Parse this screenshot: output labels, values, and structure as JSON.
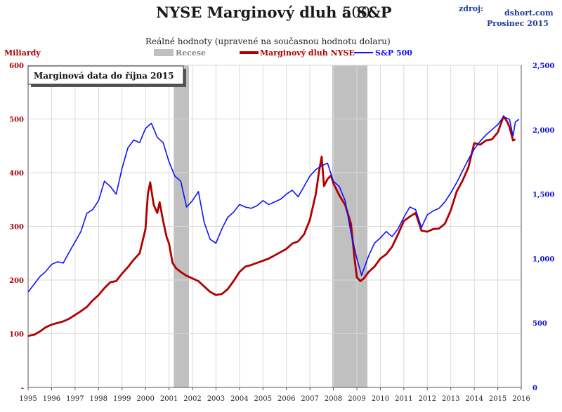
{
  "title_main": "NYSE Marginový dluh a S&P",
  "title_number": "500",
  "subtitle": "Reálné hodnoty (upravené na současnou hodnotu dolaru)",
  "source_label": "zdroj:",
  "source_site": "dshort.com",
  "source_date": "Prosinec 2015",
  "annotation": "Marginová data do října 2015",
  "ylabel_left": "Miliardy",
  "colors": {
    "margin_debt": "#b00000",
    "sp500": "#1010ff",
    "recession": "#c0c0c0",
    "grid": "#d9d9d9"
  },
  "chart_data": {
    "type": "line",
    "xlim": [
      1995,
      2016
    ],
    "x_ticks": [
      1995,
      1996,
      1997,
      1998,
      1999,
      2000,
      2001,
      2002,
      2003,
      2004,
      2005,
      2006,
      2007,
      2008,
      2009,
      2010,
      2011,
      2012,
      2013,
      2014,
      2015,
      2016
    ],
    "x_tick_labels": [
      "1995",
      "1996",
      "1997",
      "1998",
      "1999",
      "2000",
      "2001",
      "2002",
      "2003",
      "2004",
      "2005",
      "2006",
      "2007",
      "2008",
      "2009",
      "2010",
      "2011",
      "2012",
      "2013",
      "2014",
      "2015",
      "2016"
    ],
    "y_left": {
      "label": "Miliardy",
      "lim": [
        0,
        600
      ],
      "ticks": [
        0,
        100,
        200,
        300,
        400,
        500,
        600
      ],
      "tick_labels": [
        "-",
        "100",
        "200",
        "300",
        "400",
        "500",
        "600"
      ]
    },
    "y_right": {
      "lim": [
        0,
        2500
      ],
      "ticks": [
        0,
        500,
        1000,
        1500,
        2000,
        2500
      ],
      "tick_labels": [
        "0",
        "500",
        "1,000",
        "1,500",
        "2,000",
        "2,500"
      ]
    },
    "grid": true,
    "legend_placement": "top-center",
    "recessions": [
      {
        "label": "Recese",
        "start": 2001.2,
        "end": 2001.85
      },
      {
        "label": "Recese",
        "start": 2007.95,
        "end": 2009.45
      }
    ],
    "series": [
      {
        "name": "Recese",
        "kind": "band"
      },
      {
        "name": "Marginový dluh NYSE",
        "axis": "left",
        "points": [
          [
            1995.0,
            96
          ],
          [
            1995.25,
            98
          ],
          [
            1995.5,
            104
          ],
          [
            1995.75,
            112
          ],
          [
            1996.0,
            117
          ],
          [
            1996.25,
            120
          ],
          [
            1996.5,
            123
          ],
          [
            1996.75,
            128
          ],
          [
            1997.0,
            135
          ],
          [
            1997.25,
            142
          ],
          [
            1997.5,
            150
          ],
          [
            1997.75,
            162
          ],
          [
            1998.0,
            172
          ],
          [
            1998.25,
            185
          ],
          [
            1998.5,
            196
          ],
          [
            1998.75,
            198
          ],
          [
            1999.0,
            212
          ],
          [
            1999.25,
            224
          ],
          [
            1999.5,
            238
          ],
          [
            1999.75,
            250
          ],
          [
            2000.0,
            295
          ],
          [
            2000.1,
            360
          ],
          [
            2000.2,
            382
          ],
          [
            2000.35,
            340
          ],
          [
            2000.5,
            325
          ],
          [
            2000.6,
            345
          ],
          [
            2000.75,
            310
          ],
          [
            2000.9,
            280
          ],
          [
            2001.0,
            268
          ],
          [
            2001.15,
            232
          ],
          [
            2001.3,
            222
          ],
          [
            2001.5,
            215
          ],
          [
            2001.75,
            208
          ],
          [
            2002.0,
            203
          ],
          [
            2002.25,
            198
          ],
          [
            2002.5,
            188
          ],
          [
            2002.75,
            178
          ],
          [
            2003.0,
            172
          ],
          [
            2003.25,
            174
          ],
          [
            2003.5,
            183
          ],
          [
            2003.75,
            198
          ],
          [
            2004.0,
            215
          ],
          [
            2004.25,
            225
          ],
          [
            2004.5,
            228
          ],
          [
            2004.75,
            232
          ],
          [
            2005.0,
            236
          ],
          [
            2005.25,
            240
          ],
          [
            2005.5,
            246
          ],
          [
            2005.75,
            252
          ],
          [
            2006.0,
            258
          ],
          [
            2006.25,
            268
          ],
          [
            2006.5,
            272
          ],
          [
            2006.75,
            285
          ],
          [
            2007.0,
            312
          ],
          [
            2007.25,
            360
          ],
          [
            2007.4,
            405
          ],
          [
            2007.5,
            430
          ],
          [
            2007.6,
            375
          ],
          [
            2007.75,
            388
          ],
          [
            2007.9,
            395
          ],
          [
            2008.0,
            380
          ],
          [
            2008.25,
            358
          ],
          [
            2008.5,
            340
          ],
          [
            2008.75,
            305
          ],
          [
            2008.9,
            240
          ],
          [
            2009.0,
            205
          ],
          [
            2009.15,
            198
          ],
          [
            2009.3,
            203
          ],
          [
            2009.5,
            215
          ],
          [
            2009.75,
            225
          ],
          [
            2010.0,
            240
          ],
          [
            2010.25,
            248
          ],
          [
            2010.5,
            262
          ],
          [
            2010.75,
            285
          ],
          [
            2011.0,
            310
          ],
          [
            2011.25,
            318
          ],
          [
            2011.5,
            325
          ],
          [
            2011.75,
            292
          ],
          [
            2012.0,
            290
          ],
          [
            2012.25,
            295
          ],
          [
            2012.5,
            296
          ],
          [
            2012.75,
            305
          ],
          [
            2013.0,
            330
          ],
          [
            2013.25,
            365
          ],
          [
            2013.5,
            385
          ],
          [
            2013.75,
            410
          ],
          [
            2014.0,
            455
          ],
          [
            2014.25,
            452
          ],
          [
            2014.5,
            460
          ],
          [
            2014.75,
            462
          ],
          [
            2015.0,
            475
          ],
          [
            2015.25,
            505
          ],
          [
            2015.4,
            495
          ],
          [
            2015.5,
            485
          ],
          [
            2015.65,
            460
          ],
          [
            2015.75,
            462
          ]
        ]
      },
      {
        "name": "S&P 500",
        "axis": "right",
        "points": [
          [
            1995.0,
            740
          ],
          [
            1995.25,
            800
          ],
          [
            1995.5,
            860
          ],
          [
            1995.75,
            900
          ],
          [
            1996.0,
            955
          ],
          [
            1996.25,
            975
          ],
          [
            1996.5,
            965
          ],
          [
            1996.75,
            1050
          ],
          [
            1997.0,
            1130
          ],
          [
            1997.25,
            1210
          ],
          [
            1997.5,
            1350
          ],
          [
            1997.75,
            1380
          ],
          [
            1998.0,
            1450
          ],
          [
            1998.25,
            1600
          ],
          [
            1998.5,
            1560
          ],
          [
            1998.75,
            1500
          ],
          [
            1999.0,
            1700
          ],
          [
            1999.25,
            1860
          ],
          [
            1999.5,
            1920
          ],
          [
            1999.75,
            1900
          ],
          [
            2000.0,
            2010
          ],
          [
            2000.25,
            2050
          ],
          [
            2000.5,
            1940
          ],
          [
            2000.75,
            1900
          ],
          [
            2001.0,
            1750
          ],
          [
            2001.25,
            1640
          ],
          [
            2001.5,
            1600
          ],
          [
            2001.75,
            1400
          ],
          [
            2002.0,
            1450
          ],
          [
            2002.25,
            1520
          ],
          [
            2002.5,
            1280
          ],
          [
            2002.75,
            1150
          ],
          [
            2003.0,
            1120
          ],
          [
            2003.25,
            1230
          ],
          [
            2003.5,
            1320
          ],
          [
            2003.75,
            1360
          ],
          [
            2004.0,
            1420
          ],
          [
            2004.25,
            1400
          ],
          [
            2004.5,
            1390
          ],
          [
            2004.75,
            1410
          ],
          [
            2005.0,
            1450
          ],
          [
            2005.25,
            1420
          ],
          [
            2005.5,
            1440
          ],
          [
            2005.75,
            1460
          ],
          [
            2006.0,
            1500
          ],
          [
            2006.25,
            1530
          ],
          [
            2006.5,
            1480
          ],
          [
            2006.75,
            1560
          ],
          [
            2007.0,
            1640
          ],
          [
            2007.25,
            1690
          ],
          [
            2007.5,
            1720
          ],
          [
            2007.75,
            1740
          ],
          [
            2008.0,
            1600
          ],
          [
            2008.25,
            1560
          ],
          [
            2008.5,
            1450
          ],
          [
            2008.75,
            1200
          ],
          [
            2009.0,
            1000
          ],
          [
            2009.2,
            870
          ],
          [
            2009.5,
            1020
          ],
          [
            2009.75,
            1120
          ],
          [
            2010.0,
            1160
          ],
          [
            2010.25,
            1210
          ],
          [
            2010.5,
            1170
          ],
          [
            2010.75,
            1230
          ],
          [
            2011.0,
            1320
          ],
          [
            2011.25,
            1400
          ],
          [
            2011.5,
            1380
          ],
          [
            2011.75,
            1240
          ],
          [
            2012.0,
            1340
          ],
          [
            2012.25,
            1370
          ],
          [
            2012.5,
            1390
          ],
          [
            2012.75,
            1440
          ],
          [
            2013.0,
            1510
          ],
          [
            2013.25,
            1590
          ],
          [
            2013.5,
            1680
          ],
          [
            2013.75,
            1770
          ],
          [
            2014.0,
            1850
          ],
          [
            2014.25,
            1910
          ],
          [
            2014.5,
            1960
          ],
          [
            2014.75,
            2000
          ],
          [
            2015.0,
            2040
          ],
          [
            2015.25,
            2100
          ],
          [
            2015.5,
            2080
          ],
          [
            2015.65,
            1950
          ],
          [
            2015.75,
            2060
          ],
          [
            2015.9,
            2080
          ]
        ]
      }
    ]
  }
}
